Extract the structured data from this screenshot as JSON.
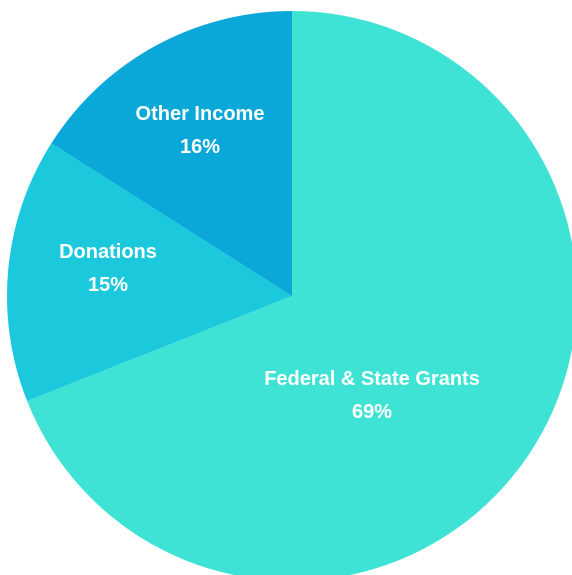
{
  "chart_data": {
    "type": "pie",
    "title": "",
    "slices": [
      {
        "label": "Federal & State Grants",
        "value": 69,
        "value_label": "69%",
        "color": "#3EE3D5"
      },
      {
        "label": "Donations",
        "value": 15,
        "value_label": "15%",
        "color": "#1BC8DC"
      },
      {
        "label": "Other Income",
        "value": 16,
        "value_label": "16%",
        "color": "#0AA8D8"
      }
    ],
    "start": "12 o'clock",
    "direction": "clockwise"
  }
}
